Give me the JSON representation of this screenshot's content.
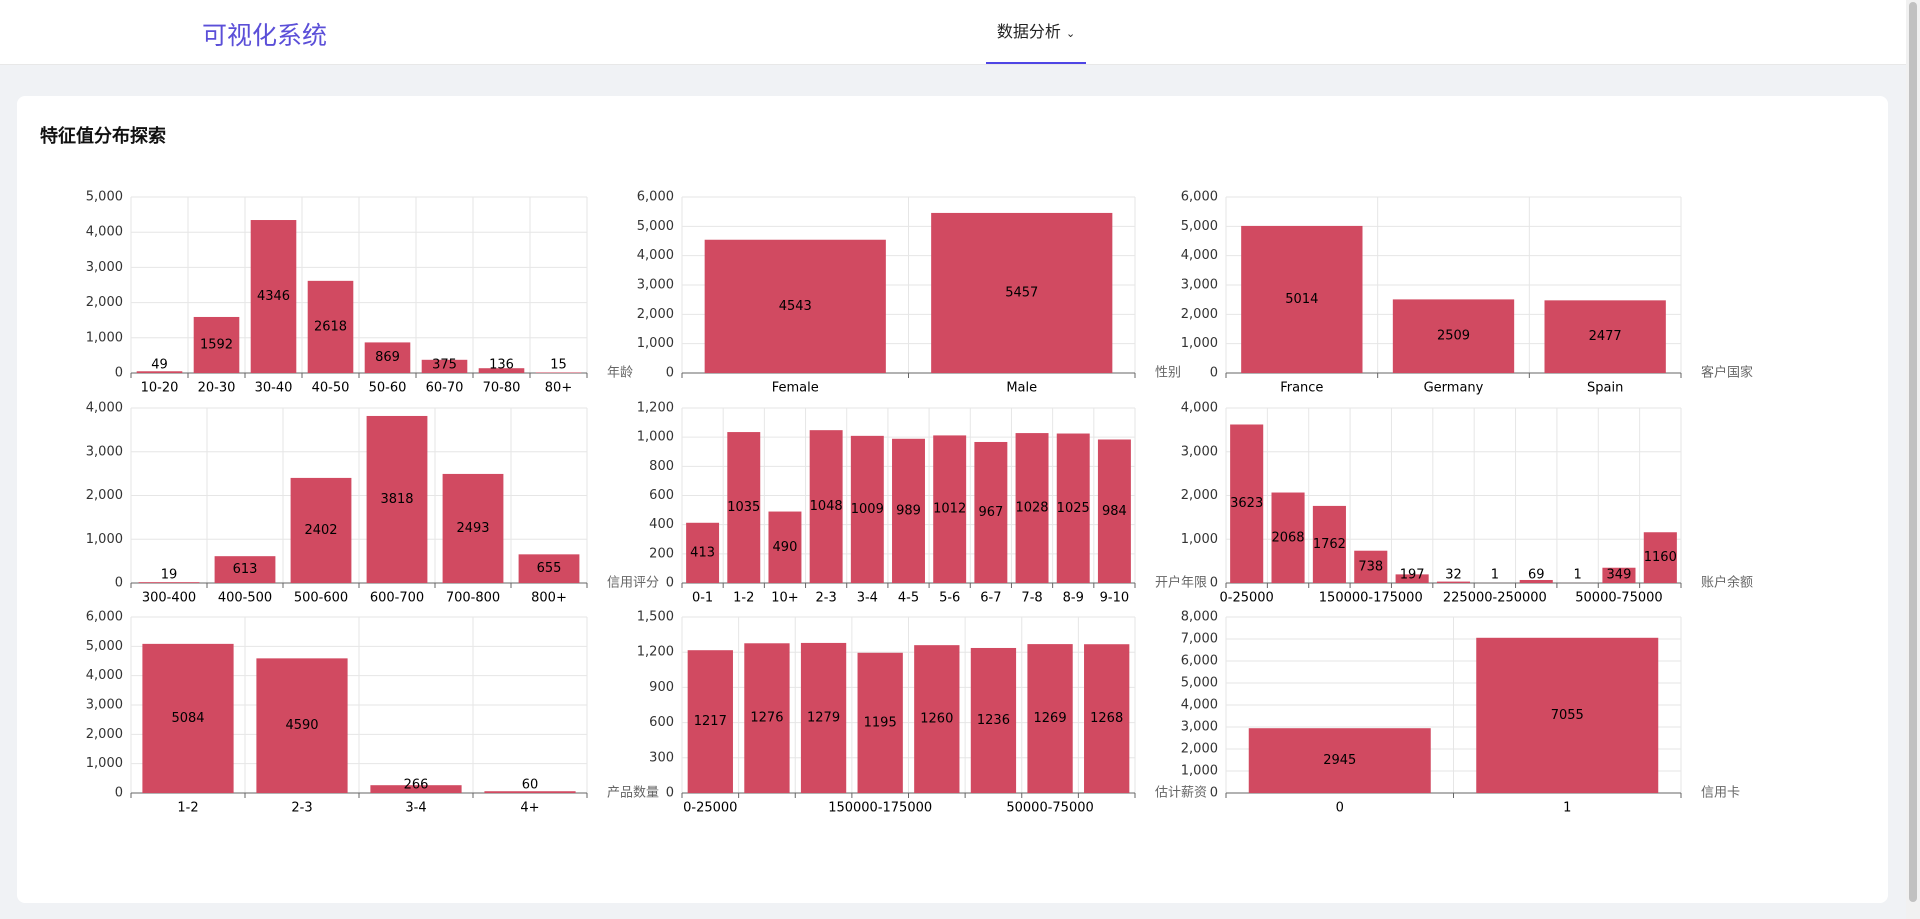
{
  "header": {
    "title": "可视化系统",
    "nav": "数据分析"
  },
  "card": {
    "title": "特征值分布探索"
  },
  "chart_data": [
    {
      "type": "bar",
      "x_label": "年龄",
      "categories": [
        "10-20",
        "20-30",
        "30-40",
        "40-50",
        "50-60",
        "60-70",
        "70-80",
        "80+"
      ],
      "values": [
        49,
        1592,
        4346,
        2618,
        869,
        375,
        136,
        15
      ],
      "color": "#d14a61",
      "ylim": [
        0,
        5000
      ],
      "yticks": [
        0,
        {
          "value": 1000,
          "label": "1,000"
        },
        {
          "value": 2000,
          "label": "2,000"
        },
        {
          "value": 3000,
          "label": "3,000"
        },
        {
          "value": 4000,
          "label": "4,000"
        },
        {
          "value": 5000,
          "label": "5,000"
        }
      ],
      "grid": true
    },
    {
      "type": "bar",
      "x_label": "性别",
      "categories": [
        "Female",
        "Male"
      ],
      "values": [
        4543,
        5457
      ],
      "color": "#d14a61",
      "ylim": [
        0,
        6000
      ],
      "yticks": [
        0,
        {
          "value": 1000,
          "label": "1,000"
        },
        {
          "value": 2000,
          "label": "2,000"
        },
        {
          "value": 3000,
          "label": "3,000"
        },
        {
          "value": 4000,
          "label": "4,000"
        },
        {
          "value": 5000,
          "label": "5,000"
        },
        {
          "value": 6000,
          "label": "6,000"
        }
      ],
      "grid": true
    },
    {
      "type": "bar",
      "x_label": "客户国家",
      "categories": [
        "France",
        "Germany",
        "Spain"
      ],
      "values": [
        5014,
        2509,
        2477
      ],
      "color": "#d14a61",
      "ylim": [
        0,
        6000
      ],
      "yticks": [
        0,
        {
          "value": 1000,
          "label": "1,000"
        },
        {
          "value": 2000,
          "label": "2,000"
        },
        {
          "value": 3000,
          "label": "3,000"
        },
        {
          "value": 4000,
          "label": "4,000"
        },
        {
          "value": 5000,
          "label": "5,000"
        },
        {
          "value": 6000,
          "label": "6,000"
        }
      ],
      "grid": true
    },
    {
      "type": "bar",
      "x_label": "信用评分",
      "categories": [
        "300-400",
        "400-500",
        "500-600",
        "600-700",
        "700-800",
        "800+"
      ],
      "values": [
        19,
        613,
        2402,
        3818,
        2493,
        655
      ],
      "color": "#d14a61",
      "ylim": [
        0,
        4000
      ],
      "yticks": [
        0,
        {
          "value": 1000,
          "label": "1,000"
        },
        {
          "value": 2000,
          "label": "2,000"
        },
        {
          "value": 3000,
          "label": "3,000"
        },
        {
          "value": 4000,
          "label": "4,000"
        }
      ],
      "grid": true
    },
    {
      "type": "bar",
      "x_label": "开户年限",
      "categories": [
        "0-1",
        "1-2",
        "10+",
        "2-3",
        "3-4",
        "4-5",
        "5-6",
        "6-7",
        "7-8",
        "8-9",
        "9-10"
      ],
      "values": [
        413,
        1035,
        490,
        1048,
        1009,
        989,
        1012,
        967,
        1028,
        1025,
        984
      ],
      "color": "#d14a61",
      "ylim": [
        0,
        1200
      ],
      "yticks": [
        0,
        200,
        400,
        600,
        800,
        {
          "value": 1000,
          "label": "1,000"
        },
        {
          "value": 1200,
          "label": "1,200"
        }
      ],
      "grid": true
    },
    {
      "type": "bar",
      "x_label": "账户余额",
      "categories": [
        "0-25000",
        null,
        null,
        "150000-175000",
        null,
        null,
        "225000-250000",
        null,
        null,
        "50000-75000",
        null
      ],
      "values": [
        3623,
        2068,
        1762,
        738,
        197,
        32,
        1,
        69,
        1,
        349,
        1160
      ],
      "color": "#d14a61",
      "ylim": [
        0,
        4000
      ],
      "yticks": [
        0,
        {
          "value": 1000,
          "label": "1,000"
        },
        {
          "value": 2000,
          "label": "2,000"
        },
        {
          "value": 3000,
          "label": "3,000"
        },
        {
          "value": 4000,
          "label": "4,000"
        }
      ],
      "grid": true
    },
    {
      "type": "bar",
      "x_label": "产品数量",
      "categories": [
        "1-2",
        "2-3",
        "3-4",
        "4+"
      ],
      "values": [
        5084,
        4590,
        266,
        60
      ],
      "color": "#d14a61",
      "ylim": [
        0,
        6000
      ],
      "yticks": [
        0,
        {
          "value": 1000,
          "label": "1,000"
        },
        {
          "value": 2000,
          "label": "2,000"
        },
        {
          "value": 3000,
          "label": "3,000"
        },
        {
          "value": 4000,
          "label": "4,000"
        },
        {
          "value": 5000,
          "label": "5,000"
        },
        {
          "value": 6000,
          "label": "6,000"
        }
      ],
      "grid": true
    },
    {
      "type": "bar",
      "x_label": "估计薪资",
      "categories": [
        "0-25000",
        null,
        null,
        "150000-175000",
        null,
        null,
        "50000-75000",
        null
      ],
      "values": [
        1217,
        1276,
        1279,
        1195,
        1260,
        1236,
        1269,
        1268
      ],
      "color": "#d14a61",
      "ylim": [
        0,
        1500
      ],
      "yticks": [
        0,
        300,
        600,
        900,
        {
          "value": 1200,
          "label": "1,200"
        },
        {
          "value": 1500,
          "label": "1,500"
        }
      ],
      "grid": true
    },
    {
      "type": "bar",
      "x_label": "信用卡",
      "categories": [
        "0",
        "1"
      ],
      "values": [
        2945,
        7055
      ],
      "color": "#d14a61",
      "ylim": [
        0,
        8000
      ],
      "yticks": [
        0,
        {
          "value": 1000,
          "label": "1,000"
        },
        {
          "value": 2000,
          "label": "2,000"
        },
        {
          "value": 3000,
          "label": "3,000"
        },
        {
          "value": 4000,
          "label": "4,000"
        },
        {
          "value": 5000,
          "label": "5,000"
        },
        {
          "value": 6000,
          "label": "6,000"
        },
        {
          "value": 7000,
          "label": "7,000"
        },
        {
          "value": 8000,
          "label": "8,000"
        }
      ],
      "grid": true
    }
  ]
}
